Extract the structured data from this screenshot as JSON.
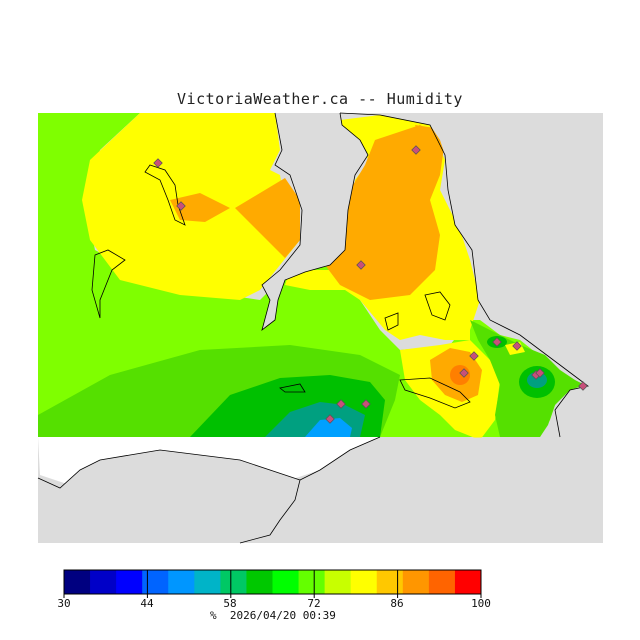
{
  "title": "VictoriaWeather.ca -- Humidity",
  "legend": {
    "min": 30,
    "max": 100,
    "tick_labels": [
      "30",
      "44",
      "58",
      "72",
      "86",
      "100"
    ],
    "colors": [
      "#000080",
      "#0000c8",
      "#0000ff",
      "#0064ff",
      "#0096ff",
      "#00b4c8",
      "#00c864",
      "#00c800",
      "#00ff00",
      "#64ff00",
      "#c8ff00",
      "#ffff00",
      "#ffc800",
      "#ff9600",
      "#ff6400",
      "#ff0000"
    ]
  },
  "footer": {
    "units": "%",
    "timestamp": "2026/04/20 00:39"
  },
  "map": {
    "land_color": "#ffffff",
    "water_color": "#dcdcdc",
    "station_count": 14,
    "zone_colors": {
      "yellow": "#ffff00",
      "orange": "#ffaa00",
      "dark_orange": "#ff7f00",
      "light_green": "#7fff00",
      "green": "#55e000",
      "mid_green": "#00c000",
      "teal": "#00a080",
      "blue": "#00a0ff"
    }
  }
}
